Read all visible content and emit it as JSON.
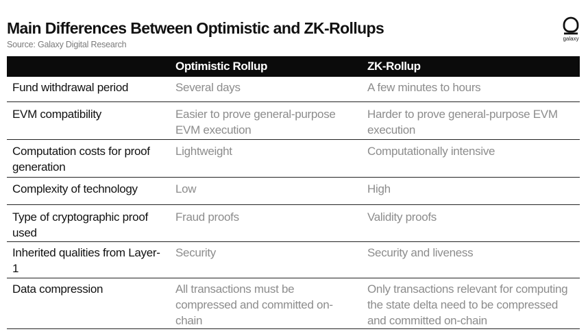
{
  "header": {
    "title": "Main Differences Between Optimistic and ZK-Rollups",
    "source": "Source: Galaxy Digital Research",
    "logo_text": "galaxy"
  },
  "table": {
    "columns": [
      "",
      "Optimistic Rollup",
      "ZK-Rollup"
    ],
    "rows": [
      {
        "label": "Fund withdrawal period",
        "optimistic": "Several days",
        "zk": "A few minutes to hours"
      },
      {
        "label": "EVM compatibility",
        "optimistic": "Easier to prove general-purpose EVM execution",
        "zk": "Harder to prove general-purpose EVM execution"
      },
      {
        "label": "Computation costs for proof generation",
        "optimistic": "Lightweight",
        "zk": "Computationally intensive"
      },
      {
        "label": "Complexity of technology",
        "optimistic": "Low",
        "zk": "High"
      },
      {
        "label": "Type of cryptographic proof used",
        "optimistic": "Fraud proofs",
        "zk": "Validity proofs"
      },
      {
        "label": "Inherited qualities from Layer-1",
        "optimistic": "Security",
        "zk": "Security and liveness"
      },
      {
        "label": "Data compression",
        "optimistic": "All transactions must be compressed and committed on-chain",
        "zk": "Only transactions relevant for computing the state delta need to be compressed and committed on-chain"
      }
    ]
  },
  "colors": {
    "header_bg": "#0b0b0b",
    "label_text": "#111111",
    "value_text": "#8c8c8c"
  }
}
